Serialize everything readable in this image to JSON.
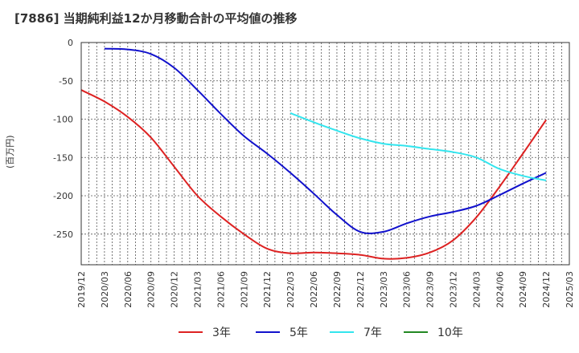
{
  "title": "[7886]  当期純利益12か月移動合計の平均値の推移",
  "chart_data": {
    "type": "line",
    "title": "[7886]  当期純利益12か月移動合計の平均値の推移",
    "ylabel": "(百万円)",
    "xlabel": "",
    "ylim": [
      -290,
      0
    ],
    "yticks": [
      0,
      -50,
      -100,
      -150,
      -200,
      -250
    ],
    "xticks": [
      "2019/12",
      "2020/03",
      "2020/06",
      "2020/09",
      "2020/12",
      "2021/03",
      "2021/06",
      "2021/09",
      "2021/12",
      "2022/03",
      "2022/06",
      "2022/09",
      "2022/12",
      "2023/03",
      "2023/06",
      "2023/09",
      "2023/12",
      "2024/03",
      "2024/06",
      "2024/09",
      "2024/12",
      "2025/03"
    ],
    "grid": true,
    "legend_position": "bottom",
    "series": [
      {
        "name": "3年",
        "color": "#dd2222",
        "points": [
          [
            "2019/12",
            -62
          ],
          [
            "2020/03",
            -77
          ],
          [
            "2020/06",
            -97
          ],
          [
            "2020/09",
            -124
          ],
          [
            "2020/12",
            -162
          ],
          [
            "2021/03",
            -200
          ],
          [
            "2021/06",
            -227
          ],
          [
            "2021/09",
            -250
          ],
          [
            "2021/12",
            -269
          ],
          [
            "2022/03",
            -275
          ],
          [
            "2022/06",
            -274
          ],
          [
            "2022/09",
            -275
          ],
          [
            "2022/12",
            -277
          ],
          [
            "2023/03",
            -282
          ],
          [
            "2023/06",
            -281
          ],
          [
            "2023/09",
            -274
          ],
          [
            "2023/12",
            -258
          ],
          [
            "2024/03",
            -228
          ],
          [
            "2024/06",
            -188
          ],
          [
            "2024/09",
            -145
          ],
          [
            "2024/12",
            -101
          ]
        ]
      },
      {
        "name": "5年",
        "color": "#1111cc",
        "points": [
          [
            "2020/03",
            -8
          ],
          [
            "2020/06",
            -9
          ],
          [
            "2020/09",
            -15
          ],
          [
            "2020/12",
            -33
          ],
          [
            "2021/03",
            -62
          ],
          [
            "2021/06",
            -93
          ],
          [
            "2021/09",
            -122
          ],
          [
            "2021/12",
            -145
          ],
          [
            "2022/03",
            -170
          ],
          [
            "2022/06",
            -197
          ],
          [
            "2022/09",
            -225
          ],
          [
            "2022/12",
            -247
          ],
          [
            "2023/03",
            -247
          ],
          [
            "2023/06",
            -236
          ],
          [
            "2023/09",
            -227
          ],
          [
            "2023/12",
            -221
          ],
          [
            "2024/03",
            -213
          ],
          [
            "2024/06",
            -199
          ],
          [
            "2024/09",
            -184
          ],
          [
            "2024/12",
            -170
          ]
        ]
      },
      {
        "name": "7年",
        "color": "#33e5ee",
        "points": [
          [
            "2022/03",
            -92
          ],
          [
            "2022/06",
            -104
          ],
          [
            "2022/09",
            -115
          ],
          [
            "2022/12",
            -125
          ],
          [
            "2023/03",
            -132
          ],
          [
            "2023/06",
            -135
          ],
          [
            "2023/09",
            -139
          ],
          [
            "2023/12",
            -143
          ],
          [
            "2024/03",
            -150
          ],
          [
            "2024/06",
            -165
          ],
          [
            "2024/09",
            -174
          ],
          [
            "2024/12",
            -180
          ]
        ]
      },
      {
        "name": "10年",
        "color": "#228822",
        "points": []
      }
    ]
  }
}
